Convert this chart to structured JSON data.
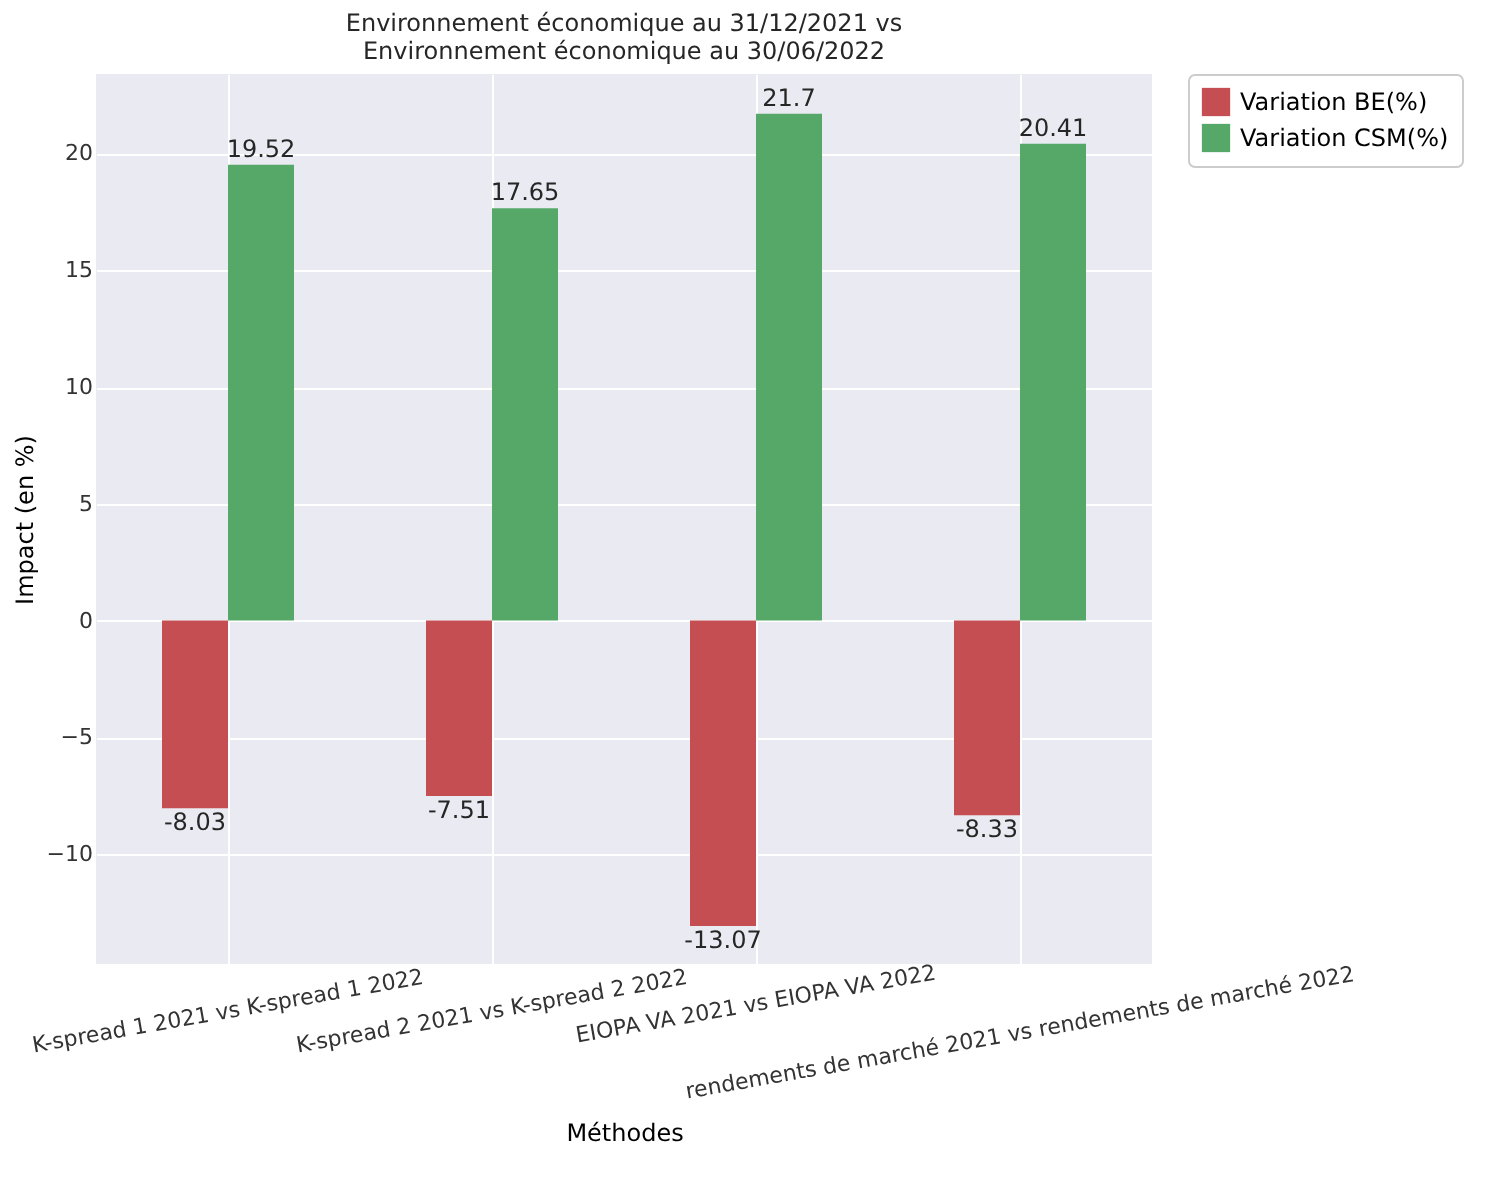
{
  "chart_data": {
    "type": "bar",
    "title": "Environnement économique au 31/12/2021 vs\nEnvironnement économique au 30/06/2022",
    "xlabel": "Méthodes",
    "ylabel": "Impact (en %)",
    "categories": [
      "K-spread  1 2021 vs K-spread  1 2022",
      "K-spread  2 2021 vs K-spread  2 2022",
      "EIOPA VA 2021 vs EIOPA VA 2022",
      "rendements de marché 2021 vs rendements de marché 2022"
    ],
    "series": [
      {
        "name": "Variation BE(%)",
        "color": "#c44e52",
        "values": [
          -8.03,
          -7.51,
          -13.07,
          -8.33
        ]
      },
      {
        "name": "Variation CSM(%)",
        "color": "#55a868",
        "values": [
          19.52,
          17.65,
          21.7,
          20.41
        ]
      }
    ],
    "ylim": [
      -14.7,
      23.4
    ],
    "yticks": [
      -10,
      -5,
      0,
      5,
      10,
      15,
      20
    ],
    "grid": true,
    "legend": "top right",
    "data_labels": true
  }
}
